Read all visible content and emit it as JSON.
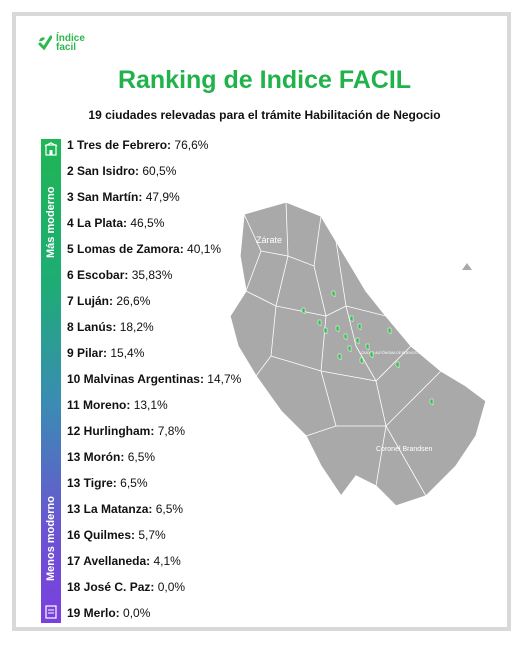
{
  "logo": {
    "line1": "Índice",
    "line2": "facil",
    "icon": "leaf-check-icon"
  },
  "title": "Ranking de Indice FACIL",
  "subtitle": "19 ciudades relevadas para el trámite Habilitación de Negocio",
  "scale": {
    "top_label": "Más moderno",
    "bottom_label": "Menos moderno",
    "top_icon": "city-building-icon",
    "bottom_icon": "document-stamp-icon",
    "top_color": "#1fb655",
    "bottom_color": "#7a3fe0"
  },
  "accent_color": "#22b24c",
  "ranking": [
    {
      "name": "1 Tres de Febrero:",
      "value": "76,6%"
    },
    {
      "name": "2 San Isidro:",
      "value": "60,5%"
    },
    {
      "name": "3 San Martín:",
      "value": "47,9%"
    },
    {
      "name": "4 La Plata:",
      "value": "46,5%"
    },
    {
      "name": "5 Lomas de Zamora:",
      "value": "40,1%"
    },
    {
      "name": "6 Escobar:",
      "value": "35,83%"
    },
    {
      "name": "7 Luján:",
      "value": "26,6%"
    },
    {
      "name": "8 Lanús:",
      "value": "18,2%"
    },
    {
      "name": "9 Pilar:",
      "value": "15,4%"
    },
    {
      "name": "10 Malvinas Argentinas:",
      "value": "14,7%"
    },
    {
      "name": "11 Moreno:",
      "value": "13,1%"
    },
    {
      "name": "12 Hurlingham:",
      "value": "7,8%"
    },
    {
      "name": "13 Morón:",
      "value": "6,5%"
    },
    {
      "name": "13 Tigre:",
      "value": "6,5%"
    },
    {
      "name": "13 La Matanza:",
      "value": "6,5%"
    },
    {
      "name": "16 Quilmes:",
      "value": "5,7%"
    },
    {
      "name": "17 Avellaneda:",
      "value": "4,1%"
    },
    {
      "name": "18 José C. Paz:",
      "value": "0,0%"
    },
    {
      "name": "19 Merlo:",
      "value": "0,0%"
    }
  ],
  "map": {
    "labels": {
      "zarate": "Zárate",
      "brandsen": "Coronel Brandsen",
      "caba": "CIUDAD AUTÓNOMA DE BUENOS AIRES"
    },
    "marker_icon": "green-pin-icon",
    "land_color": "#a9a9a9",
    "marker_color": "#2fbf4a"
  }
}
